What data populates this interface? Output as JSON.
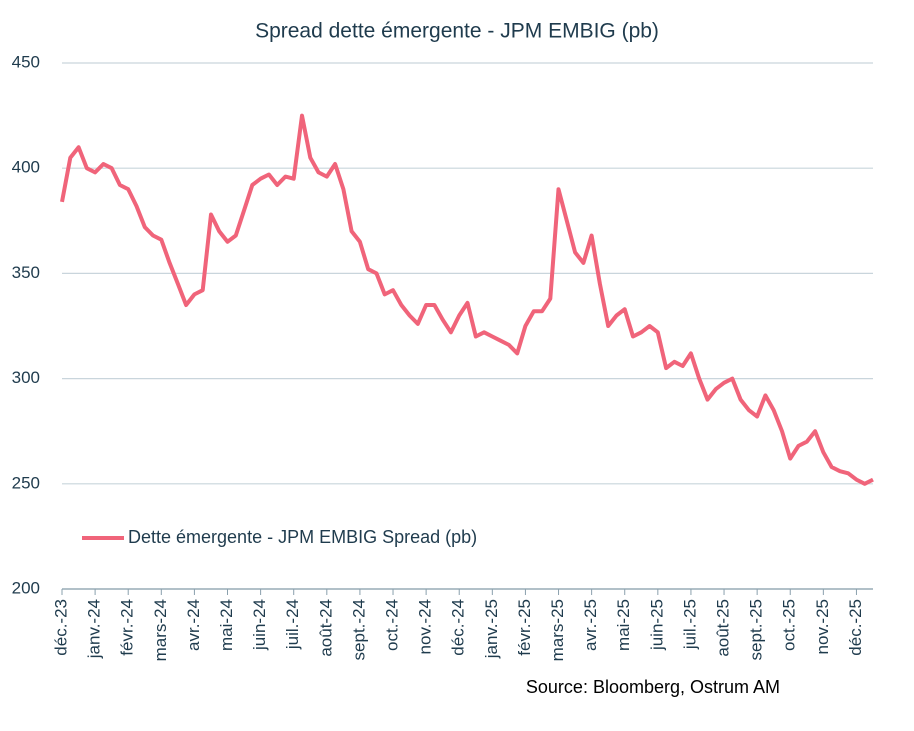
{
  "chart_data": {
    "type": "line",
    "title": "Spread dette émergente - JPM EMBIG (pb)",
    "source": "Source: Bloomberg, Ostrum AM",
    "categories": [
      "déc.-23",
      null,
      null,
      null,
      "janv.-24",
      null,
      null,
      null,
      "févr.-24",
      null,
      null,
      null,
      "mars-24",
      null,
      null,
      null,
      "avr.-24",
      null,
      null,
      null,
      "mai-24",
      null,
      null,
      null,
      "juin-24",
      null,
      null,
      null,
      "juil.-24",
      null,
      null,
      null,
      "août-24",
      null,
      null,
      null,
      "sept.-24",
      null,
      null,
      null,
      "oct.-24",
      null,
      null,
      null,
      "nov.-24",
      null,
      null,
      null,
      "déc.-24",
      null,
      null,
      null,
      "janv.-25",
      null,
      null,
      null,
      "févr.-25",
      null,
      null,
      null,
      "mars-25",
      null,
      null,
      null,
      "avr.-25",
      null,
      null,
      null,
      "mai-25",
      null,
      null,
      null,
      "juin-25",
      null,
      null,
      null,
      "juil.-25",
      null,
      null,
      null,
      "août-25",
      null,
      null,
      null,
      "sept.-25",
      null,
      null,
      null,
      "oct.-25",
      null,
      null,
      null,
      "nov.-25",
      null,
      null,
      null,
      "déc.-25",
      null,
      null
    ],
    "series": [
      {
        "name": "Dette émergente - JPM EMBIG Spread  (pb)",
        "color": "#f0647a",
        "values": [
          384,
          405,
          410,
          400,
          398,
          402,
          400,
          392,
          390,
          382,
          372,
          368,
          366,
          355,
          345,
          335,
          340,
          342,
          378,
          370,
          365,
          368,
          380,
          392,
          395,
          397,
          392,
          396,
          395,
          425,
          405,
          398,
          396,
          402,
          390,
          370,
          365,
          352,
          350,
          340,
          342,
          335,
          330,
          326,
          335,
          335,
          328,
          322,
          330,
          336,
          320,
          322,
          320,
          318,
          316,
          312,
          325,
          332,
          332,
          338,
          390,
          375,
          360,
          355,
          368,
          345,
          325,
          330,
          333,
          320,
          322,
          325,
          322,
          305,
          308,
          306,
          312,
          300,
          290,
          295,
          298,
          300,
          290,
          285,
          282,
          292,
          285,
          275,
          262,
          268,
          270,
          275,
          265,
          258,
          256,
          255,
          252,
          250,
          252
        ]
      }
    ],
    "ylim": [
      200,
      450
    ],
    "yticks": [
      200,
      250,
      300,
      350,
      400,
      450
    ],
    "grid": true,
    "legend": "lower left"
  }
}
